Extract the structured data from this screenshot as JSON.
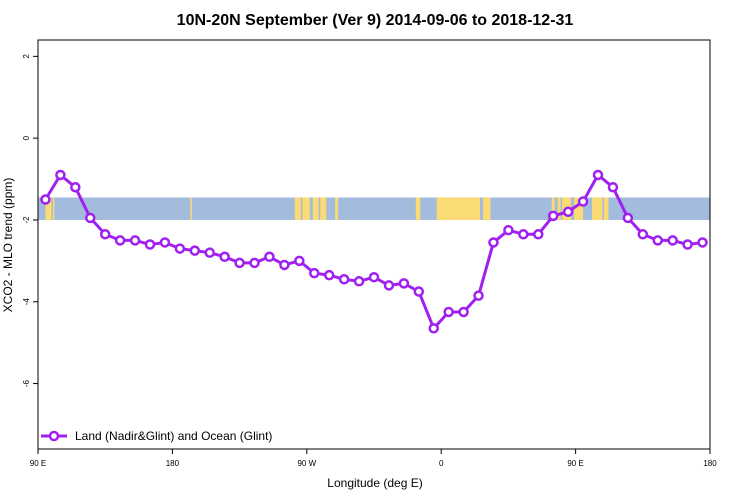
{
  "chart_data": {
    "type": "line",
    "title": "10N-20N September (Ver 9)   2014-09-06 to 2018-12-31",
    "xlabel": "Longitude (deg E)",
    "ylabel": "XCO2 - MLO trend (ppm)",
    "xlim": [
      90,
      540
    ],
    "ylim": [
      -7.6,
      2.4
    ],
    "xticks": [
      {
        "value": 90,
        "label": "90 E"
      },
      {
        "value": 180,
        "label": "180"
      },
      {
        "value": 270,
        "label": "90 W"
      },
      {
        "value": 360,
        "label": "0"
      },
      {
        "value": 450,
        "label": "90 E"
      },
      {
        "value": 540,
        "label": "180"
      }
    ],
    "yticks": [
      {
        "value": 2,
        "label": "2"
      },
      {
        "value": 0,
        "label": "0"
      },
      {
        "value": -2,
        "label": "-2"
      },
      {
        "value": -4,
        "label": "-4"
      },
      {
        "value": -6,
        "label": "-6"
      }
    ],
    "grid": false,
    "legend_position": "bottom-left",
    "series": [
      {
        "name": "Land (Nadir&Glint) and Ocean (Glint)",
        "color": "#a020f0",
        "x": [
          95,
          105,
          115,
          125,
          135,
          145,
          155,
          165,
          175,
          185,
          195,
          205,
          215,
          225,
          235,
          245,
          255,
          265,
          275,
          285,
          295,
          305,
          315,
          325,
          335,
          345,
          355,
          365,
          375,
          385,
          395,
          405,
          415,
          425,
          435,
          445,
          455,
          465,
          475,
          485,
          495,
          505,
          515,
          525,
          535
        ],
        "y": [
          -1.5,
          -0.9,
          -1.2,
          -1.95,
          -2.35,
          -2.5,
          -2.5,
          -2.6,
          -2.55,
          -2.7,
          -2.75,
          -2.8,
          -2.9,
          -3.05,
          -3.05,
          -2.9,
          -3.1,
          -3.0,
          -3.3,
          -3.35,
          -3.45,
          -3.5,
          -3.4,
          -3.6,
          -3.55,
          -3.75,
          -4.65,
          -4.25,
          -4.25,
          -3.85,
          -2.55,
          -2.25,
          -2.35,
          -2.35,
          -1.9,
          -1.8,
          -1.55,
          -0.9,
          -1.2,
          -1.95,
          -2.35,
          -2.5,
          -2.5,
          -2.6,
          -2.55
        ]
      }
    ],
    "map_strip": {
      "y_top": -1.45,
      "y_bottom": -2.0,
      "ocean_color": "#a3bbdd",
      "land_color": "#fadb74",
      "land_ranges": [
        [
          95,
          99
        ],
        [
          100,
          101
        ],
        [
          192,
          193
        ],
        [
          262,
          266
        ],
        [
          267,
          272
        ],
        [
          274,
          278
        ],
        [
          279,
          283
        ],
        [
          289,
          291
        ],
        [
          343,
          346
        ],
        [
          357,
          386
        ],
        [
          388,
          393
        ],
        [
          434,
          436
        ],
        [
          438,
          440
        ],
        [
          441,
          447
        ],
        [
          449,
          455
        ],
        [
          461,
          466
        ],
        [
          466,
          468
        ],
        [
          469,
          472
        ]
      ]
    }
  }
}
